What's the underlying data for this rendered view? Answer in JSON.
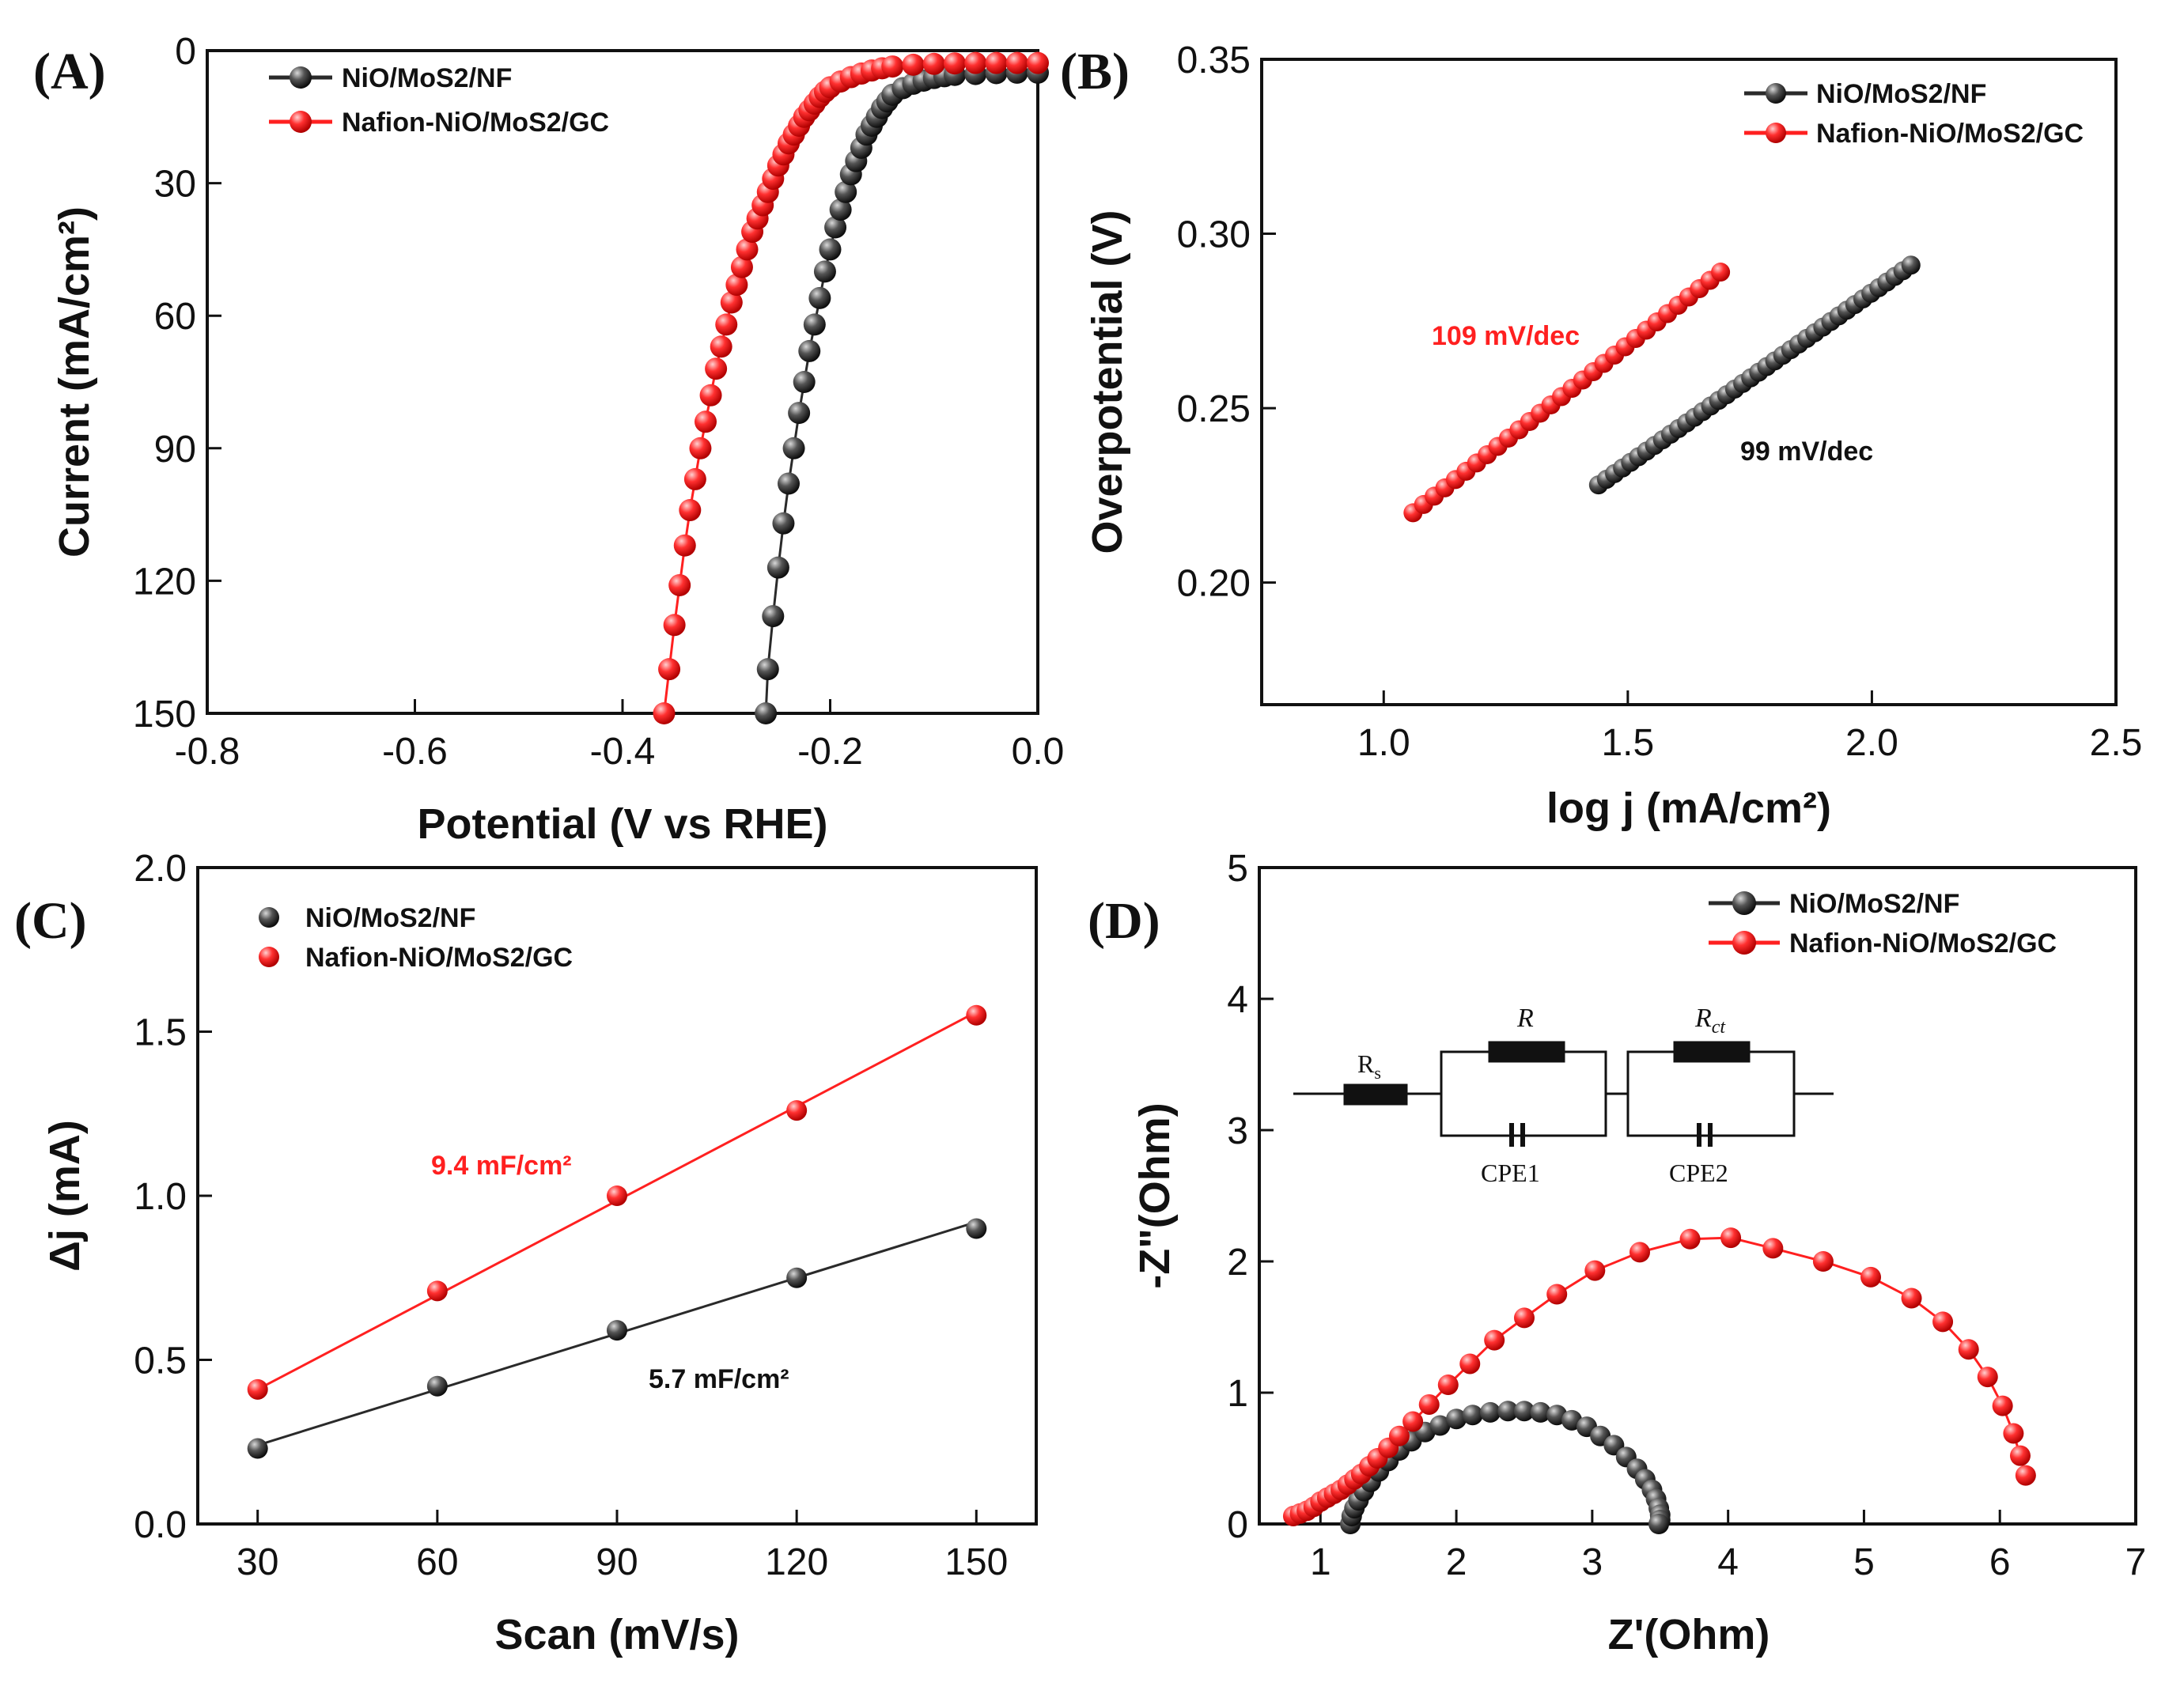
{
  "colors": {
    "black_series": "#2a2a2a",
    "red_series": "#ff2020",
    "axis": "#111111"
  },
  "chart_data": [
    {
      "panel": "(A)",
      "type": "line",
      "xlabel": "Potential (V vs RHE)",
      "ylabel": "Current (mA/cm²)",
      "xlim": [
        -0.8,
        0.0
      ],
      "ylim": [
        0,
        150
      ],
      "y_inverted": true,
      "x_ticks": [
        "-0.8",
        "-0.6",
        "-0.4",
        "-0.2",
        "0.0"
      ],
      "y_ticks": [
        "0",
        "30",
        "60",
        "90",
        "120",
        "150"
      ],
      "legend": [
        "NiO/MoS2/NF",
        "Nafion-NiO/MoS2/GC"
      ],
      "series": [
        {
          "name": "NiO/MoS2/NF",
          "color": "black",
          "x": [
            -0.262,
            -0.26,
            -0.255,
            -0.25,
            -0.245,
            -0.24,
            -0.235,
            -0.23,
            -0.225,
            -0.22,
            -0.215,
            -0.21,
            -0.205,
            -0.2,
            -0.195,
            -0.19,
            -0.185,
            -0.18,
            -0.175,
            -0.17,
            -0.165,
            -0.16,
            -0.155,
            -0.15,
            -0.145,
            -0.14,
            -0.13,
            -0.12,
            -0.11,
            -0.1,
            -0.09,
            -0.08,
            -0.06,
            -0.04,
            -0.02,
            0.0
          ],
          "y": [
            150,
            140,
            128,
            117,
            107,
            98,
            90,
            82,
            75,
            68,
            62,
            56,
            50,
            45,
            40,
            36,
            32,
            28,
            25,
            22,
            19,
            17,
            15,
            13,
            11.5,
            10,
            8.5,
            7.5,
            6.8,
            6.2,
            5.8,
            5.5,
            5.3,
            5.1,
            5,
            5
          ]
        },
        {
          "name": "Nafion-NiO/MoS2/GC",
          "color": "red",
          "x": [
            -0.36,
            -0.355,
            -0.35,
            -0.345,
            -0.34,
            -0.335,
            -0.33,
            -0.325,
            -0.32,
            -0.315,
            -0.31,
            -0.305,
            -0.3,
            -0.295,
            -0.29,
            -0.285,
            -0.28,
            -0.275,
            -0.27,
            -0.265,
            -0.26,
            -0.255,
            -0.25,
            -0.245,
            -0.24,
            -0.235,
            -0.23,
            -0.225,
            -0.22,
            -0.215,
            -0.21,
            -0.205,
            -0.2,
            -0.19,
            -0.18,
            -0.17,
            -0.16,
            -0.15,
            -0.14,
            -0.12,
            -0.1,
            -0.08,
            -0.06,
            -0.04,
            -0.02,
            0.0
          ],
          "y": [
            150,
            140,
            130,
            121,
            112,
            104,
            97,
            90,
            84,
            78,
            72,
            67,
            62,
            57,
            53,
            49,
            45,
            41,
            38,
            35,
            32,
            29,
            26,
            23.5,
            21,
            19,
            17,
            15,
            13.5,
            12,
            10.5,
            9.3,
            8.3,
            7,
            6,
            5.2,
            4.5,
            4,
            3.6,
            3.2,
            3,
            2.9,
            2.8,
            2.8,
            2.8,
            2.8
          ]
        }
      ]
    },
    {
      "panel": "(B)",
      "type": "line",
      "xlabel": "log j (mA/cm²)",
      "ylabel": "Overpotential (V)",
      "xlim": [
        0.75,
        2.5
      ],
      "ylim": [
        0.165,
        0.35
      ],
      "x_ticks": [
        "1.0",
        "1.5",
        "2.0",
        "2.5"
      ],
      "y_ticks": [
        "0.20",
        "0.25",
        "0.30",
        "0.35"
      ],
      "legend": [
        "NiO/MoS2/NF",
        "Nafion-NiO/MoS2/GC"
      ],
      "annotations": [
        "109 mV/dec",
        "99 mV/dec"
      ],
      "series": [
        {
          "name": "NiO/MoS2/NF",
          "color": "black",
          "x_range": [
            1.44,
            2.08
          ],
          "y_range": [
            0.228,
            0.291
          ],
          "n_points": 40
        },
        {
          "name": "Nafion-NiO/MoS2/GC",
          "color": "red",
          "x_range": [
            1.06,
            1.69
          ],
          "y_range": [
            0.22,
            0.289
          ],
          "n_points": 30
        }
      ]
    },
    {
      "panel": "(C)",
      "type": "scatter",
      "xlabel": "Scan (mV/s)",
      "ylabel": "Δj (mA)",
      "xlim": [
        20,
        160
      ],
      "ylim": [
        0,
        2.0
      ],
      "x_ticks": [
        "30",
        "60",
        "90",
        "120",
        "150"
      ],
      "y_ticks": [
        "0.0",
        "0.5",
        "1.0",
        "1.5",
        "2.0"
      ],
      "legend": [
        "NiO/MoS2/NF",
        "Nafion-NiO/MoS2/GC"
      ],
      "annotations": [
        "9.4 mF/cm²",
        "5.7 mF/cm²"
      ],
      "series": [
        {
          "name": "NiO/MoS2/NF",
          "color": "black",
          "x": [
            30,
            60,
            90,
            120,
            150
          ],
          "y": [
            0.23,
            0.42,
            0.59,
            0.75,
            0.9
          ],
          "fit": [
            [
              30,
              0.24
            ],
            [
              150,
              0.92
            ]
          ]
        },
        {
          "name": "Nafion-NiO/MoS2/GC",
          "color": "red",
          "x": [
            30,
            60,
            90,
            120,
            150
          ],
          "y": [
            0.41,
            0.71,
            1.0,
            1.26,
            1.55
          ],
          "fit": [
            [
              30,
              0.41
            ],
            [
              150,
              1.56
            ]
          ]
        }
      ]
    },
    {
      "panel": "(D)",
      "type": "line",
      "xlabel": "Z'(Ohm)",
      "ylabel": "-Z\"(Ohm)",
      "xlim": [
        0.55,
        7.0
      ],
      "ylim": [
        0,
        5.0
      ],
      "x_ticks": [
        "1",
        "2",
        "3",
        "4",
        "5",
        "6",
        "7"
      ],
      "y_ticks": [
        "0",
        "1",
        "2",
        "3",
        "4",
        "5"
      ],
      "legend": [
        "NiO/MoS2/NF",
        "Nafion-NiO/MoS2/GC"
      ],
      "circuit_labels": [
        "Rs",
        "R",
        "Rct",
        "CPE1",
        "CPE2"
      ],
      "series": [
        {
          "name": "NiO/MoS2/NF",
          "color": "black",
          "x": [
            1.22,
            1.23,
            1.25,
            1.28,
            1.32,
            1.37,
            1.43,
            1.5,
            1.58,
            1.67,
            1.77,
            1.88,
            2.0,
            2.12,
            2.25,
            2.38,
            2.5,
            2.62,
            2.74,
            2.85,
            2.96,
            3.06,
            3.16,
            3.25,
            3.33,
            3.39,
            3.44,
            3.47,
            3.49,
            3.5,
            3.5,
            3.49
          ],
          "y": [
            0.0,
            0.06,
            0.12,
            0.18,
            0.25,
            0.32,
            0.4,
            0.48,
            0.56,
            0.63,
            0.7,
            0.75,
            0.8,
            0.83,
            0.85,
            0.86,
            0.86,
            0.85,
            0.83,
            0.79,
            0.74,
            0.67,
            0.6,
            0.51,
            0.42,
            0.34,
            0.26,
            0.19,
            0.12,
            0.07,
            0.03,
            0.0
          ]
        },
        {
          "name": "Nafion-NiO/MoS2/GC",
          "color": "red",
          "x": [
            0.8,
            0.85,
            0.9,
            0.95,
            1.0,
            1.05,
            1.1,
            1.15,
            1.2,
            1.25,
            1.3,
            1.36,
            1.42,
            1.5,
            1.58,
            1.68,
            1.8,
            1.94,
            2.1,
            2.28,
            2.5,
            2.74,
            3.02,
            3.35,
            3.72,
            4.02,
            4.33,
            4.7,
            5.05,
            5.35,
            5.58,
            5.77,
            5.91,
            6.02,
            6.1,
            6.15,
            6.19
          ],
          "y": [
            0.06,
            0.08,
            0.1,
            0.13,
            0.17,
            0.2,
            0.23,
            0.26,
            0.3,
            0.34,
            0.38,
            0.44,
            0.5,
            0.58,
            0.67,
            0.78,
            0.91,
            1.06,
            1.22,
            1.4,
            1.57,
            1.75,
            1.93,
            2.07,
            2.17,
            2.18,
            2.1,
            2.0,
            1.88,
            1.72,
            1.54,
            1.33,
            1.12,
            0.9,
            0.69,
            0.52,
            0.37
          ]
        }
      ]
    }
  ]
}
